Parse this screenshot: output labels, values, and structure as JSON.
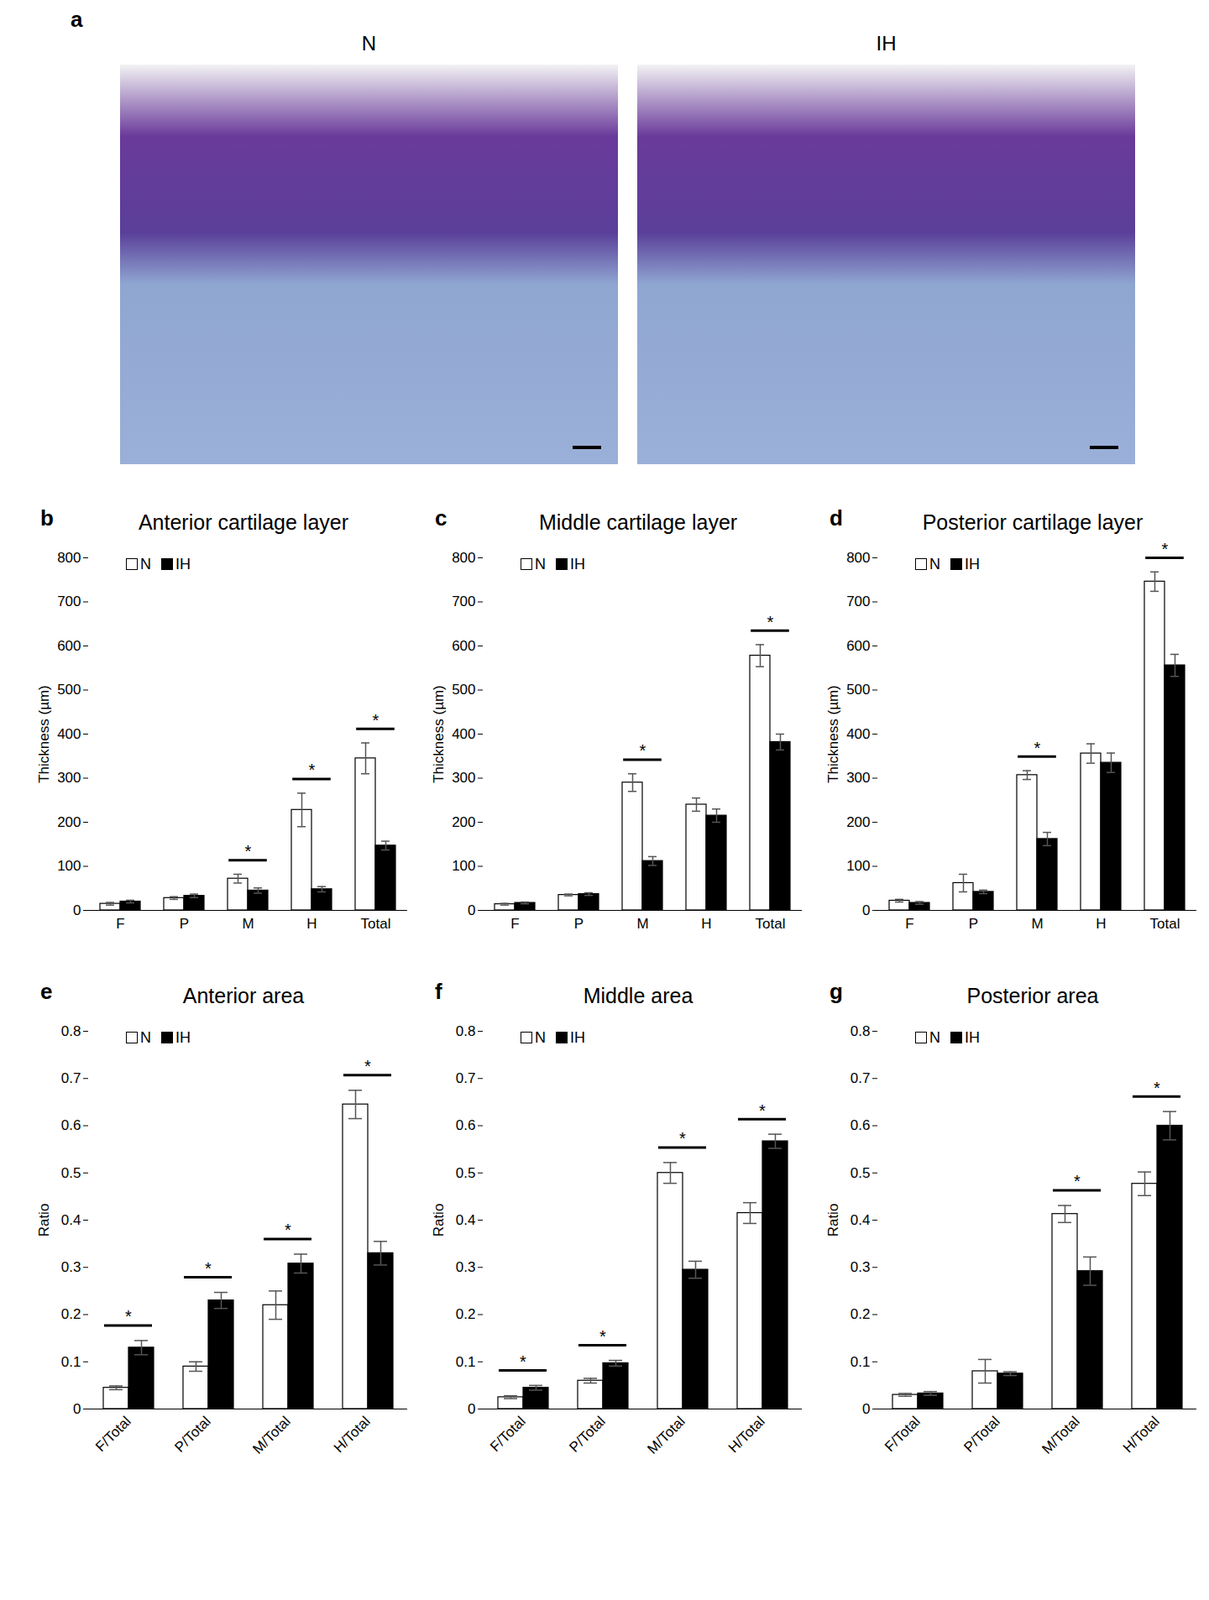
{
  "images": {
    "panel": "a",
    "labels": [
      "N",
      "IH"
    ]
  },
  "chart_data": [
    {
      "panel": "b",
      "type": "bar",
      "title": "Anterior cartilage layer",
      "y_label": "Thickness (µm)",
      "categories": [
        "F",
        "P",
        "M",
        "H",
        "Total"
      ],
      "series": [
        {
          "name": "N",
          "color": "#ffffff",
          "values": [
            15,
            28,
            72,
            228,
            345
          ],
          "error": [
            3,
            3,
            10,
            38,
            35
          ]
        },
        {
          "name": "IH",
          "color": "#000000",
          "values": [
            20,
            33,
            45,
            48,
            147
          ],
          "error": [
            3,
            4,
            6,
            6,
            10
          ]
        }
      ],
      "significant": [
        false,
        false,
        true,
        true,
        true
      ],
      "significance_label": "*",
      "ylim": [
        0,
        800
      ],
      "yticks": [
        0,
        100,
        200,
        300,
        400,
        500,
        600,
        700,
        800
      ],
      "legend": "top-left"
    },
    {
      "panel": "c",
      "type": "bar",
      "title": "Middle cartilage layer",
      "y_label": "Thickness (µm)",
      "categories": [
        "F",
        "P",
        "M",
        "H",
        "Total"
      ],
      "series": [
        {
          "name": "N",
          "color": "#ffffff",
          "values": [
            14,
            35,
            290,
            240,
            578
          ],
          "error": [
            2,
            2,
            20,
            15,
            25
          ]
        },
        {
          "name": "IH",
          "color": "#000000",
          "values": [
            17,
            37,
            112,
            215,
            382
          ],
          "error": [
            2,
            3,
            10,
            15,
            18
          ]
        }
      ],
      "significant": [
        false,
        false,
        true,
        false,
        true
      ],
      "significance_label": "*",
      "ylim": [
        0,
        800
      ],
      "yticks": [
        0,
        100,
        200,
        300,
        400,
        500,
        600,
        700,
        800
      ],
      "legend": "top-left"
    },
    {
      "panel": "d",
      "type": "bar",
      "title": "Posterior cartilage layer",
      "y_label": "Thickness (µm)",
      "categories": [
        "F",
        "P",
        "M",
        "H",
        "Total"
      ],
      "series": [
        {
          "name": "N",
          "color": "#ffffff",
          "values": [
            22,
            62,
            307,
            356,
            746
          ],
          "error": [
            3,
            20,
            10,
            22,
            22
          ]
        },
        {
          "name": "IH",
          "color": "#000000",
          "values": [
            17,
            42,
            162,
            335,
            556
          ],
          "error": [
            3,
            4,
            15,
            22,
            25
          ]
        }
      ],
      "significant": [
        false,
        false,
        true,
        false,
        true
      ],
      "significance_label": "*",
      "ylim": [
        0,
        800
      ],
      "yticks": [
        0,
        100,
        200,
        300,
        400,
        500,
        600,
        700,
        800
      ],
      "legend": "top-left"
    },
    {
      "panel": "e",
      "type": "bar",
      "title": "Anterior area",
      "y_label": "Ratio",
      "categories": [
        "F/Total",
        "P/Total",
        "M/Total",
        "H/Total"
      ],
      "series": [
        {
          "name": "N",
          "color": "#ffffff",
          "values": [
            0.045,
            0.09,
            0.22,
            0.645
          ],
          "error": [
            0.004,
            0.01,
            0.03,
            0.03
          ]
        },
        {
          "name": "IH",
          "color": "#000000",
          "values": [
            0.13,
            0.23,
            0.308,
            0.33
          ],
          "error": [
            0.015,
            0.017,
            0.02,
            0.025
          ]
        }
      ],
      "significant": [
        true,
        true,
        true,
        true
      ],
      "significance_label": "*",
      "ylim": [
        0,
        0.8
      ],
      "yticks": [
        0,
        0.1,
        0.2,
        0.3,
        0.4,
        0.5,
        0.6,
        0.7,
        0.8
      ],
      "legend": "top-left"
    },
    {
      "panel": "f",
      "type": "bar",
      "title": "Middle area",
      "y_label": "Ratio",
      "categories": [
        "F/Total",
        "P/Total",
        "M/Total",
        "H/Total"
      ],
      "series": [
        {
          "name": "N",
          "color": "#ffffff",
          "values": [
            0.025,
            0.06,
            0.5,
            0.415
          ],
          "error": [
            0.003,
            0.005,
            0.022,
            0.022
          ]
        },
        {
          "name": "IH",
          "color": "#000000",
          "values": [
            0.045,
            0.097,
            0.295,
            0.567
          ],
          "error": [
            0.005,
            0.006,
            0.018,
            0.015
          ]
        }
      ],
      "significant": [
        true,
        true,
        true,
        true
      ],
      "significance_label": "*",
      "ylim": [
        0,
        0.8
      ],
      "yticks": [
        0,
        0.1,
        0.2,
        0.3,
        0.4,
        0.5,
        0.6,
        0.7,
        0.8
      ],
      "legend": "top-left"
    },
    {
      "panel": "g",
      "type": "bar",
      "title": "Posterior area",
      "y_label": "Ratio",
      "categories": [
        "F/Total",
        "P/Total",
        "M/Total",
        "H/Total"
      ],
      "series": [
        {
          "name": "N",
          "color": "#ffffff",
          "values": [
            0.03,
            0.08,
            0.413,
            0.477
          ],
          "error": [
            0.003,
            0.025,
            0.018,
            0.025
          ]
        },
        {
          "name": "IH",
          "color": "#000000",
          "values": [
            0.033,
            0.075,
            0.292,
            0.6
          ],
          "error": [
            0.004,
            0.004,
            0.03,
            0.03
          ]
        }
      ],
      "significant": [
        false,
        false,
        true,
        true
      ],
      "significance_label": "*",
      "ylim": [
        0,
        0.8
      ],
      "yticks": [
        0,
        0.1,
        0.2,
        0.3,
        0.4,
        0.5,
        0.6,
        0.7,
        0.8
      ],
      "legend": "top-left"
    }
  ]
}
